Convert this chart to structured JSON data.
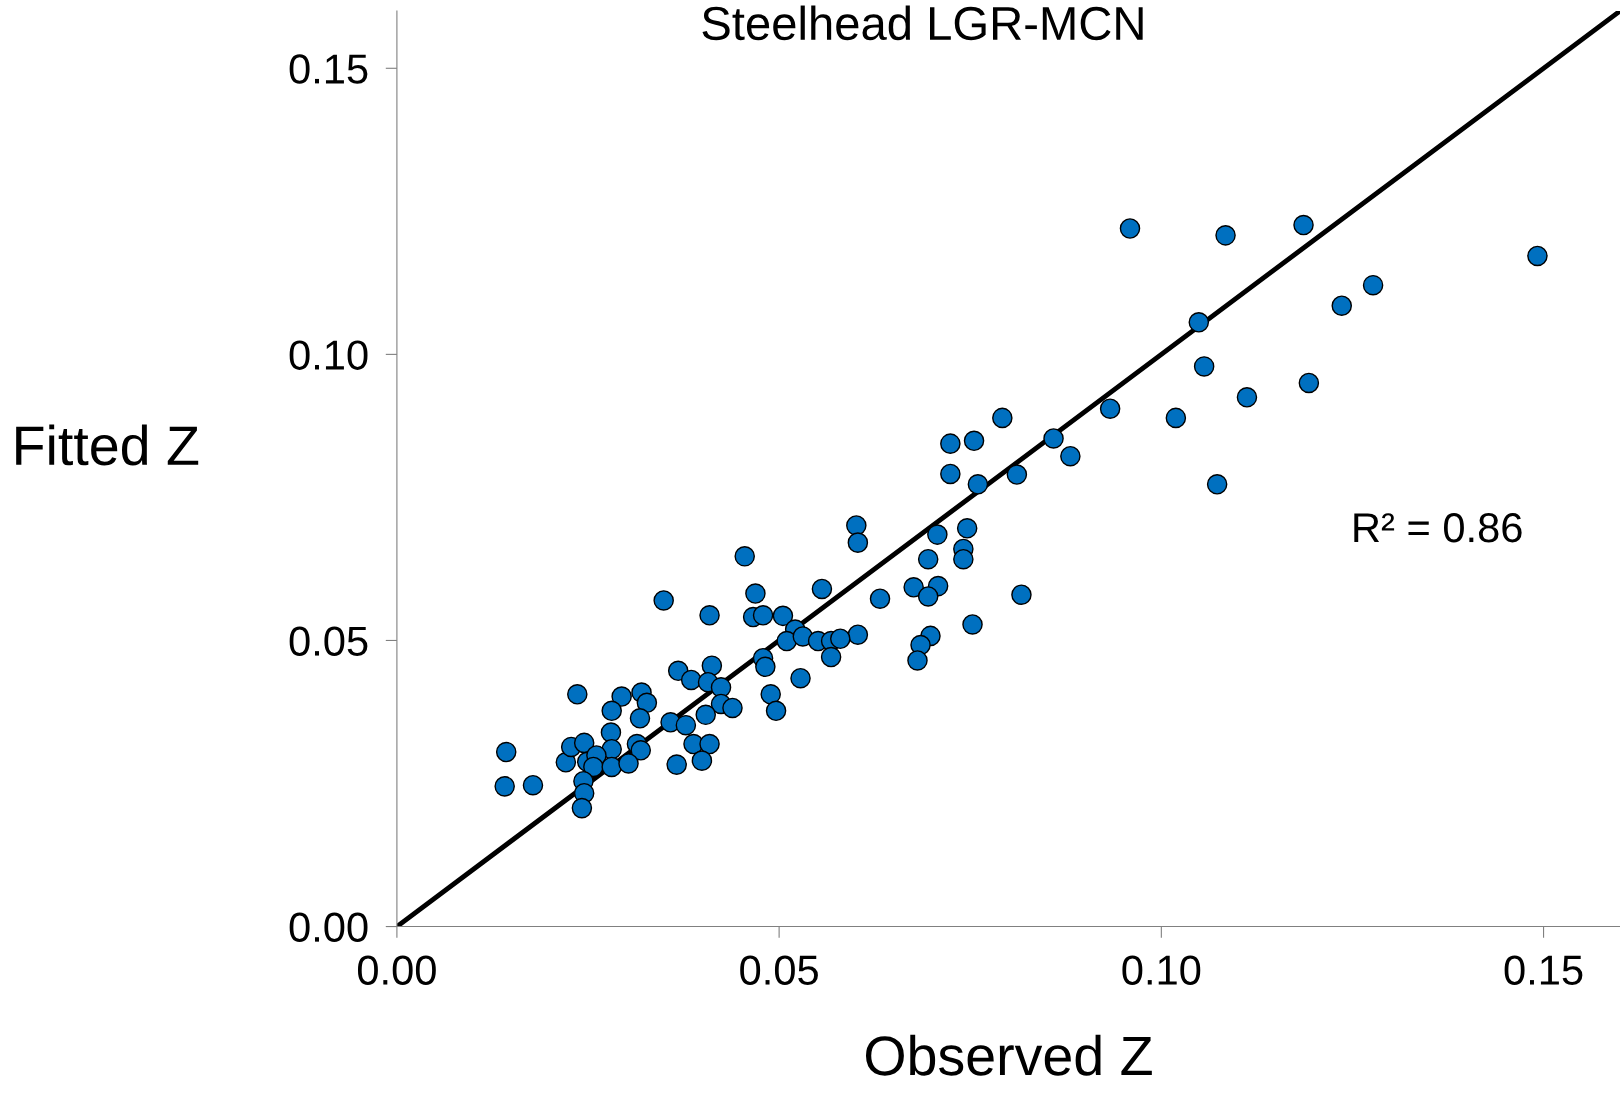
{
  "chart_data": {
    "type": "scatter",
    "title": "Steelhead LGR-MCN",
    "xlabel": "Observed Z",
    "ylabel": "Fitted Z",
    "annotations": [
      "R² = 0.86"
    ],
    "xlim": [
      0,
      0.16
    ],
    "ylim": [
      0,
      0.16
    ],
    "xticks": [
      {
        "value": 0,
        "label": "0.00"
      },
      {
        "value": 0.05,
        "label": "0.05"
      },
      {
        "value": 0.1,
        "label": "0.10"
      },
      {
        "value": 0.15,
        "label": "0.15"
      }
    ],
    "yticks": [
      {
        "value": 0,
        "label": "0.00"
      },
      {
        "value": 0.05,
        "label": "0.05"
      },
      {
        "value": 0.1,
        "label": "0.10"
      },
      {
        "value": 0.15,
        "label": "0.15"
      }
    ],
    "grid": false,
    "legend": false,
    "series": [
      {
        "marker": "circle",
        "color": "#0070c0",
        "x": [
          0.0959,
          0.1084,
          0.1186,
          0.1492,
          0.1277,
          0.1236,
          0.1049,
          0.1056,
          0.1112,
          0.1193,
          0.0933,
          0.1019,
          0.1073,
          0.0792,
          0.0859,
          0.0881,
          0.0755,
          0.0724,
          0.0724,
          0.0811,
          0.076,
          0.0601,
          0.0603,
          0.0707,
          0.0746,
          0.0741,
          0.0741,
          0.0695,
          0.0455,
          0.0556,
          0.0632,
          0.0676,
          0.0708,
          0.0695,
          0.0817,
          0.0753,
          0.0698,
          0.0685,
          0.0681,
          0.0603,
          0.0349,
          0.0409,
          0.0469,
          0.0466,
          0.0479,
          0.0505,
          0.0521,
          0.051,
          0.0531,
          0.0551,
          0.0568,
          0.058,
          0.0568,
          0.0479,
          0.0482,
          0.0528,
          0.0489,
          0.0496,
          0.0368,
          0.0385,
          0.0412,
          0.0407,
          0.0424,
          0.0424,
          0.0439,
          0.0404,
          0.0358,
          0.0378,
          0.032,
          0.0327,
          0.0318,
          0.0294,
          0.0281,
          0.0236,
          0.028,
          0.0281,
          0.0314,
          0.0319,
          0.0388,
          0.0409,
          0.0366,
          0.0399,
          0.0143,
          0.0141,
          0.0178,
          0.0221,
          0.0228,
          0.0245,
          0.0249,
          0.0261,
          0.0257,
          0.0281,
          0.0303,
          0.0244,
          0.0245,
          0.0242
        ],
        "values": [
          0.122,
          0.1208,
          0.1226,
          0.1172,
          0.1121,
          0.1085,
          0.1056,
          0.0979,
          0.0925,
          0.095,
          0.0905,
          0.0889,
          0.0773,
          0.0889,
          0.0853,
          0.0822,
          0.0849,
          0.0844,
          0.0791,
          0.079,
          0.0773,
          0.0701,
          0.0671,
          0.0685,
          0.0696,
          0.066,
          0.0642,
          0.0642,
          0.0647,
          0.059,
          0.0573,
          0.0593,
          0.0595,
          0.0577,
          0.058,
          0.0528,
          0.0508,
          0.0492,
          0.0465,
          0.051,
          0.057,
          0.0544,
          0.0582,
          0.0541,
          0.0544,
          0.0543,
          0.0519,
          0.0499,
          0.0507,
          0.0499,
          0.0499,
          0.0503,
          0.0471,
          0.0469,
          0.0454,
          0.0434,
          0.0406,
          0.0377,
          0.0447,
          0.0431,
          0.0456,
          0.0427,
          0.0418,
          0.0389,
          0.0382,
          0.037,
          0.0357,
          0.0352,
          0.0409,
          0.0391,
          0.0364,
          0.0402,
          0.0377,
          0.0406,
          0.0339,
          0.031,
          0.0319,
          0.0308,
          0.0319,
          0.0319,
          0.0283,
          0.029,
          0.0305,
          0.0245,
          0.0247,
          0.0287,
          0.0314,
          0.0321,
          0.0288,
          0.0299,
          0.0279,
          0.0279,
          0.0285,
          0.0254,
          0.0233,
          0.0207
        ]
      },
      {
        "type": "line",
        "color": "#000000",
        "line_style": "solid",
        "x": [
          0,
          0.16
        ],
        "values": [
          0,
          0.16
        ]
      }
    ]
  }
}
